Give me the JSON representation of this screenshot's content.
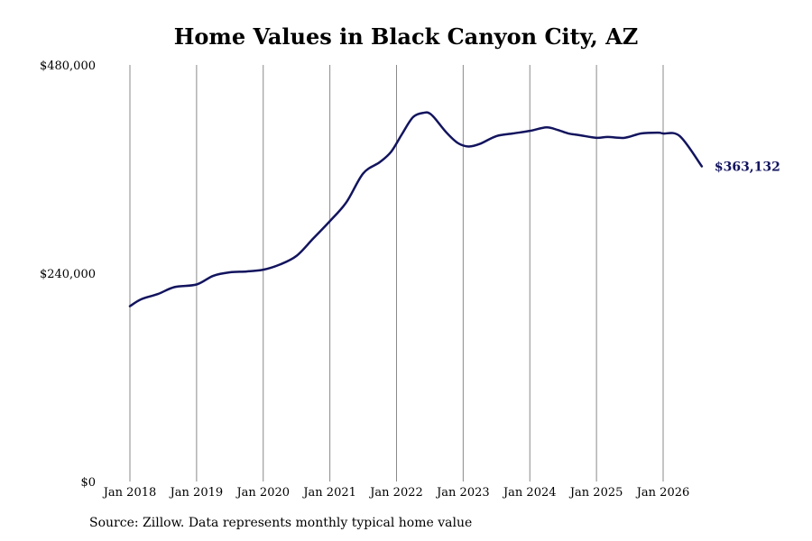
{
  "chart_data": {
    "type": "line",
    "title": "Home Values in Black Canyon City, AZ",
    "xlabel": "",
    "ylabel": "",
    "x_ticks": [
      "Jan 2018",
      "Jan 2019",
      "Jan 2020",
      "Jan 2021",
      "Jan 2022",
      "Jan 2023",
      "Jan 2024",
      "Jan 2025",
      "Jan 2026"
    ],
    "x_tick_positions": [
      2018,
      2019,
      2020,
      2021,
      2022,
      2023,
      2024,
      2025,
      2026
    ],
    "y_ticks": [
      "$0",
      "$240,000",
      "$480,000"
    ],
    "y_tick_values": [
      0,
      240000,
      480000
    ],
    "ylim": [
      0,
      480000
    ],
    "xlim": [
      2018,
      2026.6
    ],
    "grid": "vertical",
    "end_label": "$363,132",
    "series": [
      {
        "color": "#12145e",
        "x": [
          2018.0,
          2018.17,
          2018.42,
          2018.67,
          2019.0,
          2019.25,
          2019.5,
          2019.75,
          2020.0,
          2020.25,
          2020.5,
          2020.75,
          2021.0,
          2021.25,
          2021.5,
          2021.75,
          2021.92,
          2022.08,
          2022.25,
          2022.42,
          2022.5,
          2022.58,
          2022.75,
          2022.92,
          2023.08,
          2023.25,
          2023.5,
          2023.75,
          2024.0,
          2024.25,
          2024.42,
          2024.58,
          2024.75,
          2025.0,
          2025.17,
          2025.42,
          2025.67,
          2025.92,
          2026.0,
          2026.25,
          2026.58
        ],
        "values": [
          202000,
          210000,
          216000,
          224000,
          227000,
          237000,
          241000,
          242000,
          244000,
          250000,
          260000,
          280000,
          300000,
          322000,
          355000,
          368000,
          380000,
          400000,
          420000,
          425000,
          424000,
          418000,
          402000,
          390000,
          386000,
          389000,
          398000,
          401000,
          404000,
          408000,
          405000,
          401000,
          399000,
          396000,
          397000,
          396000,
          401000,
          402000,
          401000,
          398000,
          363132
        ]
      }
    ]
  },
  "source": "Source: Zillow. Data represents monthly typical home value"
}
